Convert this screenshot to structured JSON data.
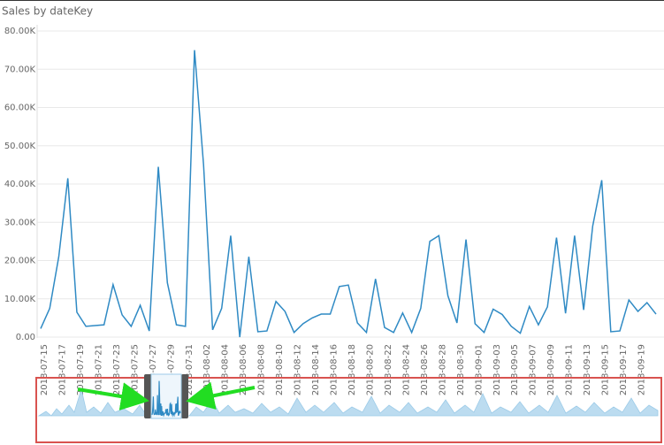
{
  "chart_data": {
    "type": "line",
    "title": "Sales by dateKey",
    "categories": [
      "2018-07-15",
      null,
      "2018-07-17",
      null,
      "2018-07-19",
      null,
      "2018-07-21",
      null,
      "2018-07-23",
      null,
      "2018-07-25",
      null,
      "2018-07-27",
      null,
      "2018-07-29",
      null,
      "2018-07-31",
      null,
      "2018-08-02",
      null,
      "2018-08-04",
      null,
      "2018-08-06",
      null,
      "2018-08-08",
      null,
      "2018-08-10",
      null,
      "2018-08-12",
      null,
      "2018-08-14",
      null,
      "2018-08-16",
      null,
      "2018-08-18",
      null,
      "2018-08-20",
      null,
      "2018-08-22",
      null,
      "2018-08-24",
      null,
      "2018-08-26",
      null,
      "2018-08-28",
      null,
      "2018-08-30",
      null,
      "2018-09-01",
      null,
      "2018-09-03",
      null,
      "2018-09-05",
      null,
      "2018-09-07",
      null,
      "2018-09-09",
      null,
      "2018-09-11",
      null,
      "2018-09-13",
      null,
      "2018-09-15",
      null,
      "2018-09-17",
      null,
      "2018-09-19",
      null,
      null
    ],
    "series": [
      {
        "name": "Sales",
        "color": "#2f8ac4",
        "values": [
          2200,
          7500,
          21000,
          41500,
          6500,
          2800,
          3000,
          3200,
          13700,
          5800,
          2800,
          8300,
          1600,
          44500,
          14200,
          3200,
          2800,
          75000,
          45000,
          1900,
          7500,
          26500,
          0,
          21000,
          1400,
          1600,
          9300,
          6700,
          1200,
          3500,
          5000,
          6000,
          6000,
          13200,
          13600,
          3700,
          1200,
          15200,
          2500,
          1200,
          6300,
          1200,
          7500,
          25000,
          26500,
          10800,
          3700,
          25500,
          3500,
          1200,
          7300,
          5900,
          2800,
          1000,
          8000,
          3200,
          7900,
          26000,
          6200,
          26500,
          7100,
          29000,
          41000,
          1400,
          1600,
          9700,
          6700,
          9000,
          6000
        ]
      }
    ],
    "ylim": [
      0,
      80000
    ],
    "yticks": [
      {
        "value": 0,
        "label": "0.00"
      },
      {
        "value": 10000,
        "label": "10.00K"
      },
      {
        "value": 20000,
        "label": "20.00K"
      },
      {
        "value": 30000,
        "label": "30.00K"
      },
      {
        "value": 40000,
        "label": "40.00K"
      },
      {
        "value": 50000,
        "label": "50.00K"
      },
      {
        "value": 60000,
        "label": "60.00K"
      },
      {
        "value": 70000,
        "label": "70.00K"
      },
      {
        "value": 80000,
        "label": "80.00K"
      }
    ],
    "grid": true
  }
}
